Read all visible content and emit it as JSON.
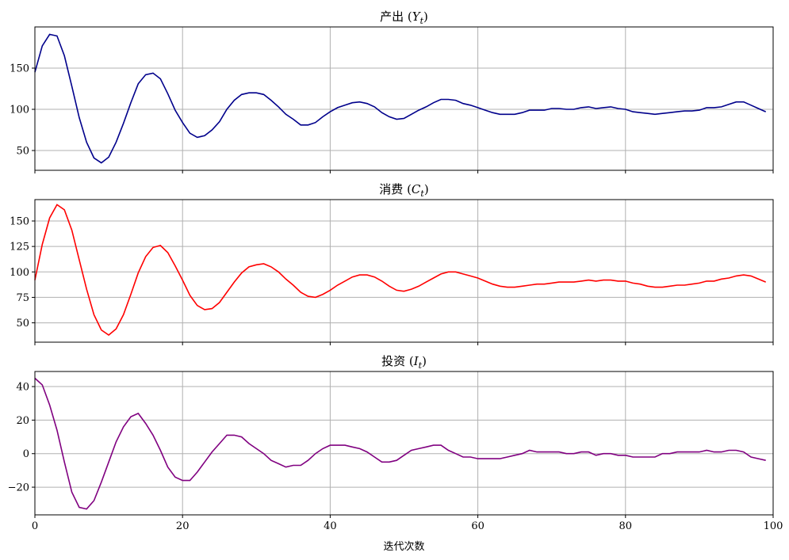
{
  "chart_data": [
    {
      "type": "line",
      "title": {
        "prefix": "产出",
        "var": "Y",
        "sub": "t"
      },
      "color": "#00008b",
      "xlim": [
        0,
        100
      ],
      "ylim": [
        26,
        200
      ],
      "xticks": [
        0,
        20,
        40,
        60,
        80,
        100
      ],
      "yticks": [
        50,
        100,
        150
      ],
      "grid": true,
      "show_xticklabels": false,
      "values": [
        145,
        177,
        191,
        189,
        165,
        128,
        90,
        60,
        41,
        35,
        42,
        60,
        83,
        108,
        131,
        142,
        144,
        137,
        119,
        99,
        84,
        71,
        66,
        68,
        75,
        85,
        100,
        111,
        118,
        120,
        120,
        118,
        111,
        103,
        94,
        88,
        81,
        81,
        84,
        91,
        97,
        102,
        105,
        108,
        109,
        107,
        103,
        96,
        91,
        88,
        89,
        94,
        99,
        103,
        108,
        112,
        112,
        111,
        107,
        105,
        102,
        99,
        96,
        94,
        94,
        94,
        96,
        99,
        99,
        99,
        101,
        101,
        100,
        100,
        102,
        103,
        101,
        102,
        103,
        101,
        100,
        97,
        96,
        95,
        94,
        95,
        96,
        97,
        98,
        98,
        99,
        102,
        102,
        103,
        106,
        109,
        109,
        105,
        101,
        97
      ]
    },
    {
      "type": "line",
      "title": {
        "prefix": "消费",
        "var": "C",
        "sub": "t"
      },
      "color": "#ff0000",
      "xlim": [
        0,
        100
      ],
      "ylim": [
        31,
        171
      ],
      "xticks": [
        0,
        20,
        40,
        60,
        80,
        100
      ],
      "yticks": [
        50,
        75,
        100,
        125,
        150
      ],
      "grid": true,
      "show_xticklabels": false,
      "values": [
        92,
        127,
        153,
        166,
        161,
        141,
        112,
        83,
        58,
        43,
        38,
        44,
        58,
        78,
        99,
        115,
        124,
        126,
        119,
        106,
        92,
        77,
        67,
        63,
        64,
        70,
        80,
        90,
        99,
        105,
        107,
        108,
        105,
        100,
        93,
        87,
        80,
        76,
        75,
        78,
        82,
        87,
        91,
        95,
        97,
        97,
        95,
        91,
        86,
        82,
        81,
        83,
        86,
        90,
        94,
        98,
        100,
        100,
        98,
        96,
        94,
        91,
        88,
        86,
        85,
        85,
        86,
        87,
        88,
        88,
        89,
        90,
        90,
        90,
        91,
        92,
        91,
        92,
        92,
        91,
        91,
        89,
        88,
        86,
        85,
        85,
        86,
        87,
        87,
        88,
        89,
        91,
        91,
        93,
        94,
        96,
        97,
        96,
        93,
        90
      ]
    },
    {
      "type": "line",
      "title": {
        "prefix": "投资",
        "var": "I",
        "sub": "t"
      },
      "color": "#800080",
      "xlim": [
        0,
        100
      ],
      "ylim": [
        -36.5,
        49
      ],
      "xticks": [
        0,
        20,
        40,
        60,
        80,
        100
      ],
      "yticks": [
        -20,
        0,
        20,
        40
      ],
      "grid": true,
      "show_xticklabels": true,
      "xlabel": "迭代次数",
      "values": [
        45,
        41,
        29,
        14,
        -5,
        -23,
        -32,
        -33,
        -28,
        -17,
        -5,
        7,
        16,
        22,
        24,
        18,
        11,
        2,
        -8,
        -14,
        -16,
        -16,
        -11,
        -5,
        1,
        6,
        11,
        11,
        10,
        6,
        3,
        0,
        -4,
        -6,
        -8,
        -7,
        -7,
        -4,
        0,
        3,
        5,
        5,
        5,
        4,
        3,
        1,
        -2,
        -5,
        -5,
        -4,
        -1,
        2,
        3,
        4,
        5,
        5,
        2,
        0,
        -2,
        -2,
        -3,
        -3,
        -3,
        -3,
        -2,
        -1,
        0,
        2,
        1,
        1,
        1,
        1,
        0,
        0,
        1,
        1,
        -1,
        0,
        0,
        -1,
        -1,
        -2,
        -2,
        -2,
        -2,
        0,
        0,
        1,
        1,
        1,
        1,
        2,
        1,
        1,
        2,
        2,
        1,
        -2,
        -3,
        -4
      ]
    }
  ]
}
